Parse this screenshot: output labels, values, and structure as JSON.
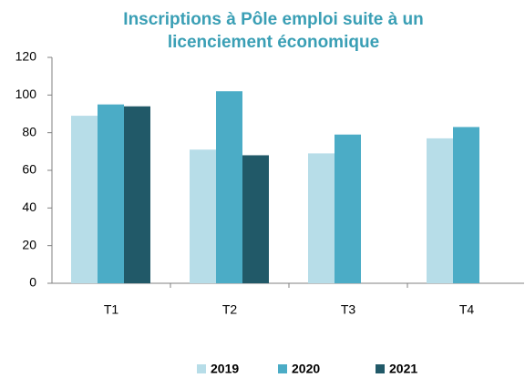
{
  "chart_data": {
    "type": "bar",
    "title": [
      "Inscriptions à Pôle emploi suite à un",
      "licenciement économique"
    ],
    "categories": [
      "T1",
      "T2",
      "T3",
      "T4"
    ],
    "series": [
      {
        "name": "2019",
        "color": "#b7dde8",
        "values": [
          89,
          71,
          69,
          77
        ]
      },
      {
        "name": "2020",
        "color": "#4bacc6",
        "values": [
          95,
          102,
          79,
          83
        ]
      },
      {
        "name": "2021",
        "color": "#215968",
        "values": [
          94,
          68,
          null,
          null
        ]
      }
    ],
    "ylim": [
      0,
      120
    ],
    "yticks": [
      0,
      20,
      40,
      60,
      80,
      100,
      120
    ],
    "grid": false,
    "legend": "bottom"
  }
}
